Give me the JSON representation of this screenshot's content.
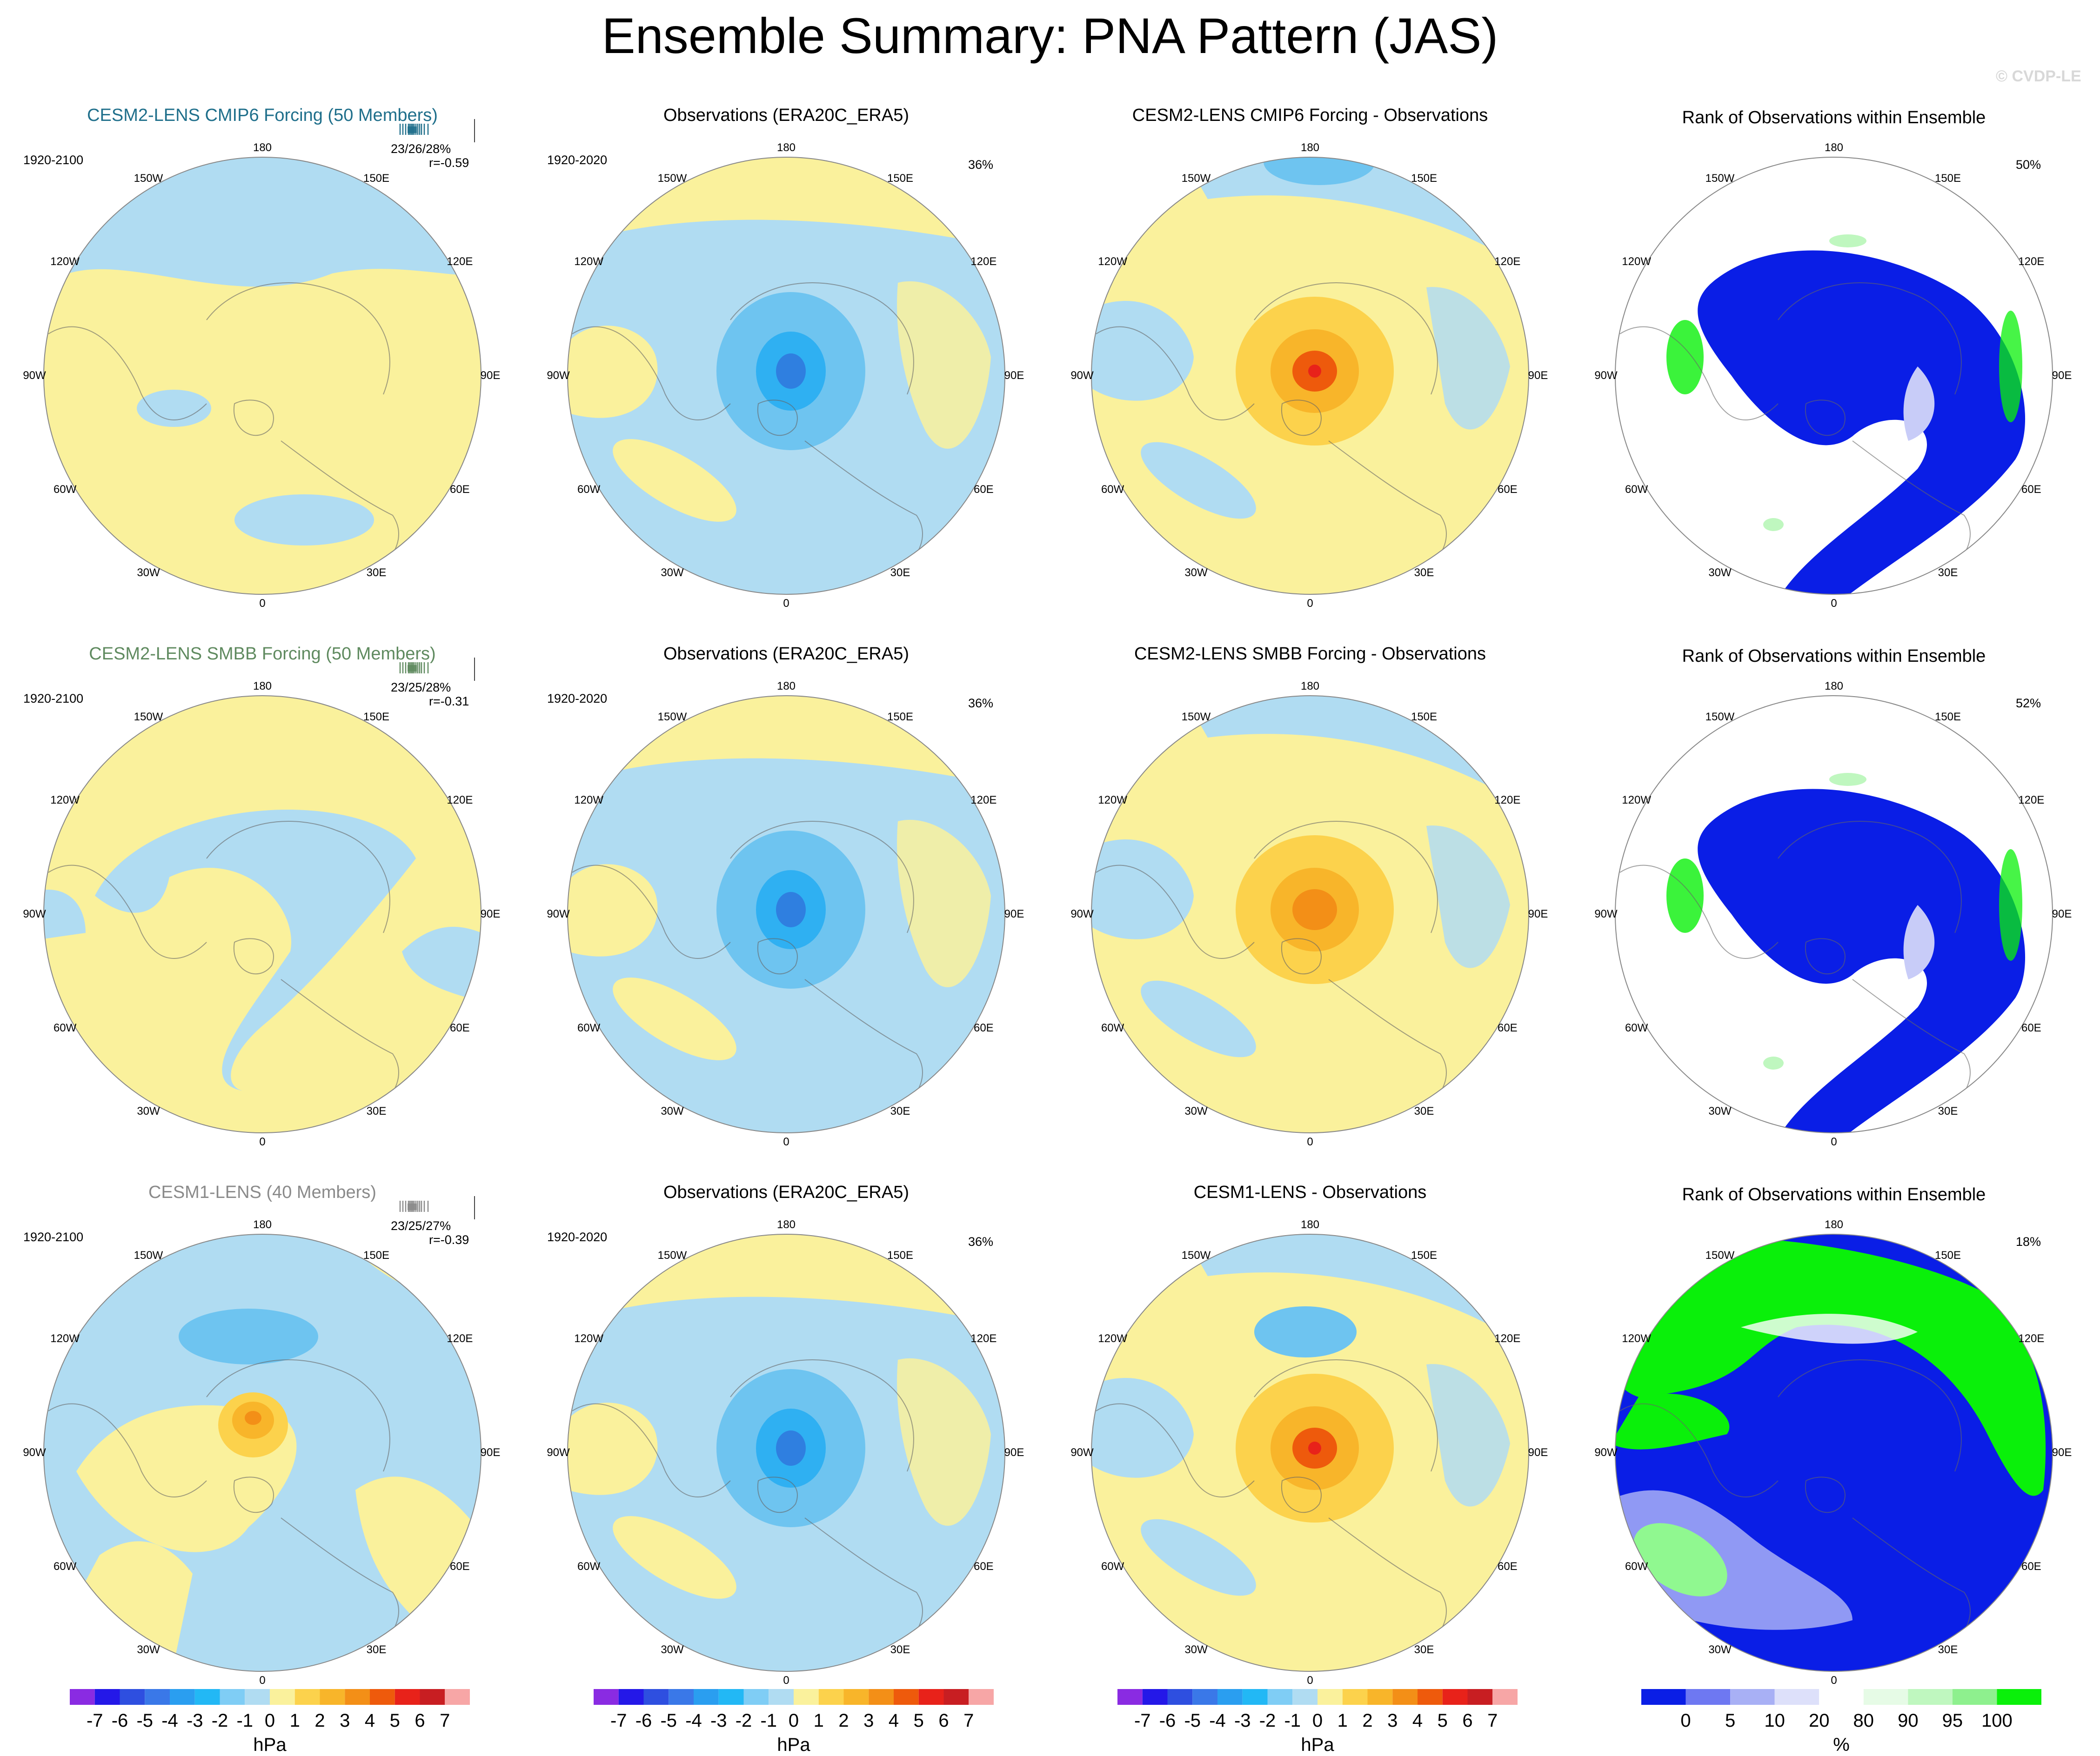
{
  "title": "Ensemble Summary: PNA Pattern (JAS)",
  "watermark": "© CVDP-LE",
  "lon_labels": [
    "180",
    "150E",
    "120E",
    "90E",
    "60E",
    "30E",
    "0",
    "30W",
    "60W",
    "90W",
    "120W",
    "150W"
  ],
  "colors": {
    "lightblue": "#b0dcf2",
    "paleyellow": "#faf19c",
    "blue2": "#6ec4f0",
    "blue3": "#2fb0f2",
    "blue4": "#1a9ae8",
    "blue5": "#2f7fe0",
    "orange1": "#fcd24c",
    "orange2": "#f8b52a",
    "orange3": "#f38f17",
    "orange4": "#ee5a0c",
    "red": "#e8221a",
    "rank_blue": "#0a1ee6",
    "rank_mid": "#6e78f2",
    "rank_light": "#c8ccf8",
    "rank_green": "#0af00a",
    "rank_lgreen": "#bff7bf"
  },
  "rows": [
    {
      "model": {
        "title": "CESM2-LENS CMIP6 Forcing (50 Members)",
        "title_color": "#1f6f8b",
        "period": "1920-2100",
        "pcts": "23/26/28%",
        "corr": "r=-0.59",
        "bar_color": "#1f6f8b"
      },
      "obs": {
        "title": "Observations (ERA20C_ERA5)",
        "period": "1920-2020",
        "pct": "36%"
      },
      "diff": {
        "title": "CESM2-LENS CMIP6 Forcing - Observations"
      },
      "rank": {
        "title": "Rank of Observations within Ensemble",
        "pct": "50%"
      }
    },
    {
      "model": {
        "title": "CESM2-LENS SMBB Forcing (50 Members)",
        "title_color": "#5f8a5f",
        "period": "1920-2100",
        "pcts": "23/25/28%",
        "corr": "r=-0.31",
        "bar_color": "#5f8a5f"
      },
      "obs": {
        "title": "Observations (ERA20C_ERA5)",
        "period": "1920-2020",
        "pct": "36%"
      },
      "diff": {
        "title": "CESM2-LENS SMBB Forcing - Observations"
      },
      "rank": {
        "title": "Rank of Observations within Ensemble",
        "pct": "52%"
      }
    },
    {
      "model": {
        "title": "CESM1-LENS (40 Members)",
        "title_color": "#8a8a8a",
        "period": "1920-2100",
        "pcts": "23/25/27%",
        "corr": "r=-0.39",
        "bar_color": "#8a8a8a"
      },
      "obs": {
        "title": "Observations (ERA20C_ERA5)",
        "period": "1920-2020",
        "pct": "36%"
      },
      "diff": {
        "title": "CESM1-LENS - Observations"
      },
      "rank": {
        "title": "Rank of Observations within Ensemble",
        "pct": "18%"
      }
    }
  ],
  "colorbar_hpa": {
    "unit": "hPa",
    "labels": [
      "-7",
      "-6",
      "-5",
      "-4",
      "-3",
      "-2",
      "-1",
      "0",
      "1",
      "2",
      "3",
      "4",
      "5",
      "6",
      "7"
    ],
    "colors": [
      "#8a2be2",
      "#2418e8",
      "#2e4fe0",
      "#3a78e8",
      "#2a9ef0",
      "#22b8f5",
      "#7fcdf5",
      "#b0dcf2",
      "#faf19c",
      "#fcd24c",
      "#f8b52a",
      "#f38f17",
      "#ee5a0c",
      "#e8221a",
      "#c81e22",
      "#f7a6a6"
    ]
  },
  "colorbar_rank": {
    "unit": "%",
    "labels": [
      "0",
      "5",
      "10",
      "20",
      "80",
      "90",
      "95",
      "100"
    ],
    "colors": [
      "#0a1ee6",
      "#6e78f2",
      "#a8b0f5",
      "#dde0fa",
      "#ffffff",
      "#e6fbe6",
      "#bff7bf",
      "#8ef08e",
      "#0af00a"
    ]
  }
}
